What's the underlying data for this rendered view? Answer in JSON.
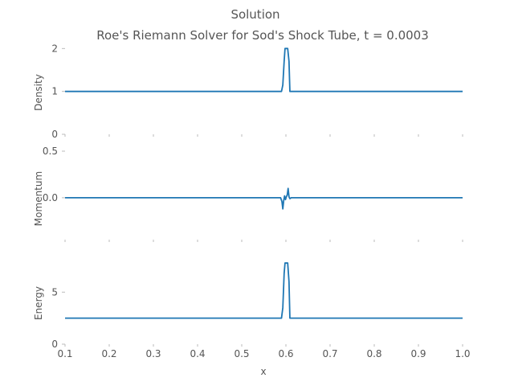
{
  "chart_data": {
    "type": "line",
    "title": "Solution",
    "subtitle": "Roe's Riemann Solver for Sod's Shock Tube, t = 0.0003",
    "xlabel": "x",
    "xlim": [
      0.1,
      1.0
    ],
    "xticks": [
      "0.1",
      "0.2",
      "0.3",
      "0.4",
      "0.5",
      "0.6",
      "0.7",
      "0.8",
      "0.9",
      "1.0"
    ],
    "grid": false,
    "panels": [
      {
        "ylabel": "Density",
        "ylim": [
          0,
          2.1
        ],
        "yticks": [
          0,
          1,
          2
        ],
        "ytick_labels": [
          "0",
          "1",
          "2"
        ],
        "x": [
          0.1,
          0.59,
          0.593,
          0.596,
          0.598,
          0.604,
          0.607,
          0.609,
          1.0
        ],
        "y": [
          1.0,
          1.0,
          1.15,
          1.7,
          2.0,
          2.0,
          1.7,
          1.0,
          1.0
        ]
      },
      {
        "ylabel": "Momentum",
        "ylim": [
          -0.45,
          0.5
        ],
        "yticks": [
          0.0,
          0.5
        ],
        "ytick_labels": [
          "0.0",
          "0.5"
        ],
        "x": [
          0.1,
          0.588,
          0.591,
          0.593,
          0.595,
          0.597,
          0.599,
          0.601,
          0.603,
          0.605,
          0.607,
          0.609,
          0.612,
          1.0
        ],
        "y": [
          0.0,
          0.0,
          -0.04,
          -0.12,
          -0.03,
          0.02,
          -0.02,
          0.01,
          0.03,
          0.1,
          0.01,
          -0.01,
          0.0,
          0.0
        ]
      },
      {
        "ylabel": "Energy",
        "ylim": [
          0,
          8.5
        ],
        "yticks": [
          0,
          5
        ],
        "ytick_labels": [
          "0",
          "5"
        ],
        "x": [
          0.1,
          0.59,
          0.593,
          0.596,
          0.598,
          0.604,
          0.607,
          0.609,
          1.0
        ],
        "y": [
          2.5,
          2.5,
          3.5,
          6.8,
          7.8,
          7.8,
          6.0,
          2.5,
          2.5
        ]
      }
    ]
  }
}
